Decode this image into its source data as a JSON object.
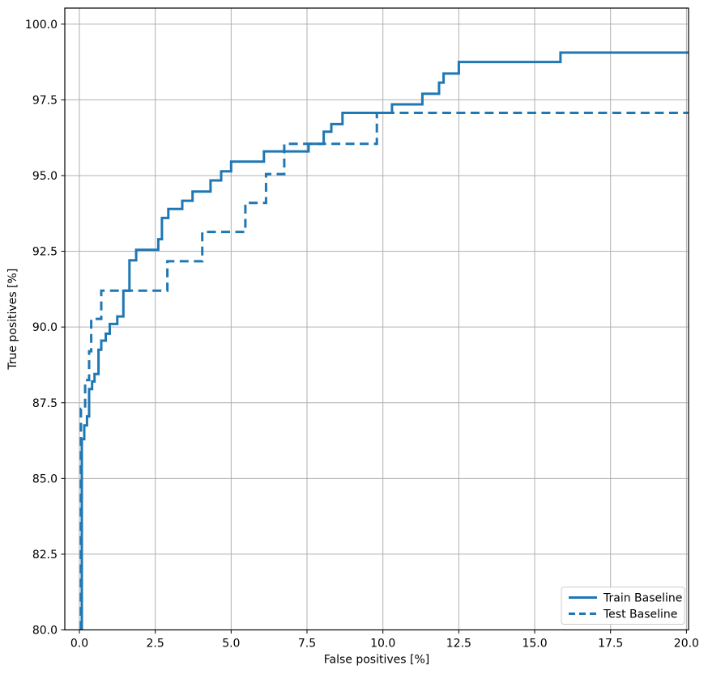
{
  "chart_data": {
    "type": "line",
    "subtype": "roc-step-curves",
    "title": "",
    "xlabel": "False positives [%]",
    "ylabel": "True positives [%]",
    "xlim": [
      -0.48,
      20.07
    ],
    "ylim": [
      80.0,
      100.53
    ],
    "grid": true,
    "grid_color": "#b0b0b0",
    "axis_color": "#000000",
    "background_color": "#ffffff",
    "accent_color": "#1f77b4",
    "xticks": {
      "values": [
        0.0,
        2.5,
        5.0,
        7.5,
        10.0,
        12.5,
        15.0,
        17.5,
        20.0
      ],
      "labels": [
        "0.0",
        "2.5",
        "5.0",
        "7.5",
        "10.0",
        "12.5",
        "15.0",
        "17.5",
        "20.0"
      ]
    },
    "yticks": {
      "values": [
        80.0,
        82.5,
        85.0,
        87.5,
        90.0,
        92.5,
        95.0,
        97.5,
        100.0
      ],
      "labels": [
        "80.0",
        "82.5",
        "85.0",
        "87.5",
        "90.0",
        "92.5",
        "95.0",
        "97.5",
        "100.0"
      ]
    },
    "legend": {
      "position": "lower-right",
      "entries": [
        {
          "label": "Train Baseline",
          "style": "solid",
          "color": "#1f77b4"
        },
        {
          "label": "Test Baseline",
          "style": "dashed",
          "color": "#1f77b4"
        }
      ]
    },
    "series": [
      {
        "name": "Train Baseline",
        "style": "solid",
        "color": "#1f77b4",
        "linewidth": 3,
        "points": [
          [
            0.08,
            80.0
          ],
          [
            0.08,
            86.3
          ],
          [
            0.16,
            86.3
          ],
          [
            0.16,
            86.75
          ],
          [
            0.25,
            86.75
          ],
          [
            0.25,
            87.05
          ],
          [
            0.32,
            87.05
          ],
          [
            0.32,
            87.95
          ],
          [
            0.42,
            87.95
          ],
          [
            0.42,
            88.2
          ],
          [
            0.5,
            88.2
          ],
          [
            0.5,
            88.45
          ],
          [
            0.63,
            88.45
          ],
          [
            0.63,
            89.25
          ],
          [
            0.72,
            89.25
          ],
          [
            0.72,
            89.55
          ],
          [
            0.87,
            89.55
          ],
          [
            0.87,
            89.78
          ],
          [
            1.0,
            89.78
          ],
          [
            1.0,
            90.1
          ],
          [
            1.25,
            90.1
          ],
          [
            1.25,
            90.35
          ],
          [
            1.45,
            90.35
          ],
          [
            1.45,
            91.2
          ],
          [
            1.65,
            91.2
          ],
          [
            1.65,
            92.2
          ],
          [
            1.87,
            92.2
          ],
          [
            1.87,
            92.55
          ],
          [
            2.6,
            92.55
          ],
          [
            2.6,
            92.9
          ],
          [
            2.72,
            92.9
          ],
          [
            2.72,
            93.6
          ],
          [
            2.93,
            93.6
          ],
          [
            2.93,
            93.9
          ],
          [
            3.39,
            93.9
          ],
          [
            3.39,
            94.17
          ],
          [
            3.73,
            94.17
          ],
          [
            3.73,
            94.47
          ],
          [
            4.32,
            94.47
          ],
          [
            4.32,
            94.84
          ],
          [
            4.67,
            94.84
          ],
          [
            4.67,
            95.14
          ],
          [
            5.0,
            95.14
          ],
          [
            5.0,
            95.46
          ],
          [
            6.08,
            95.46
          ],
          [
            6.08,
            95.8
          ],
          [
            7.55,
            95.8
          ],
          [
            7.55,
            96.05
          ],
          [
            8.05,
            96.05
          ],
          [
            8.05,
            96.45
          ],
          [
            8.3,
            96.45
          ],
          [
            8.3,
            96.7
          ],
          [
            8.67,
            96.7
          ],
          [
            8.67,
            97.07
          ],
          [
            10.3,
            97.07
          ],
          [
            10.3,
            97.35
          ],
          [
            11.3,
            97.35
          ],
          [
            11.3,
            97.7
          ],
          [
            11.85,
            97.7
          ],
          [
            11.85,
            98.07
          ],
          [
            12.0,
            98.07
          ],
          [
            12.0,
            98.37
          ],
          [
            12.5,
            98.37
          ],
          [
            12.5,
            98.75
          ],
          [
            15.85,
            98.75
          ],
          [
            15.85,
            99.06
          ],
          [
            20.07,
            99.06
          ]
        ]
      },
      {
        "name": "Test Baseline",
        "style": "dashed",
        "color": "#1f77b4",
        "linewidth": 3,
        "points": [
          [
            0.05,
            80.0
          ],
          [
            0.05,
            87.3
          ],
          [
            0.19,
            87.3
          ],
          [
            0.19,
            88.25
          ],
          [
            0.32,
            88.25
          ],
          [
            0.32,
            89.2
          ],
          [
            0.39,
            89.2
          ],
          [
            0.39,
            90.27
          ],
          [
            0.72,
            90.27
          ],
          [
            0.72,
            91.2
          ],
          [
            2.9,
            91.2
          ],
          [
            2.9,
            92.17
          ],
          [
            4.05,
            92.17
          ],
          [
            4.05,
            93.14
          ],
          [
            5.47,
            93.14
          ],
          [
            5.47,
            94.1
          ],
          [
            6.15,
            94.1
          ],
          [
            6.15,
            95.05
          ],
          [
            6.75,
            95.05
          ],
          [
            6.75,
            96.05
          ],
          [
            9.8,
            96.05
          ],
          [
            9.8,
            97.07
          ],
          [
            20.07,
            97.07
          ]
        ]
      }
    ]
  }
}
